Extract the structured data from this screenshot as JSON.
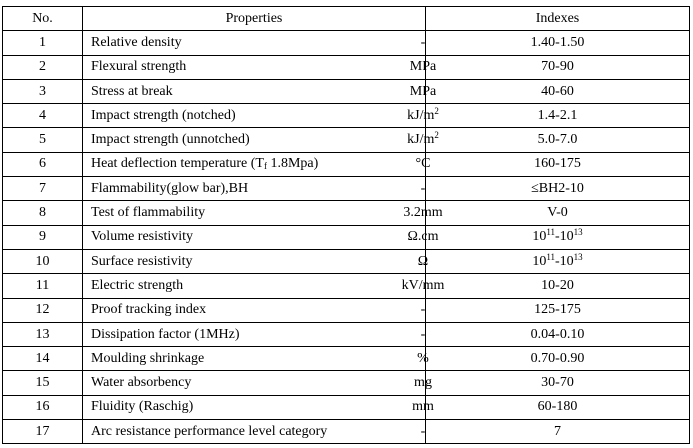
{
  "headers": {
    "no": "No.",
    "properties": "Properties",
    "indexes": "Indexes"
  },
  "rows": [
    {
      "no": "1",
      "property": [
        "Relative density"
      ],
      "unit": [
        "-"
      ],
      "value": [
        "1.40-1.50"
      ]
    },
    {
      "no": "2",
      "property": [
        "Flexural strength"
      ],
      "unit": [
        "MPa"
      ],
      "value": [
        "70-90"
      ]
    },
    {
      "no": "3",
      "property": [
        "Stress at break"
      ],
      "unit": [
        "MPa"
      ],
      "value": [
        "40-60"
      ]
    },
    {
      "no": "4",
      "property": [
        "Impact strength (notched)"
      ],
      "unit": [
        "kJ/m",
        {
          "sup": "2"
        }
      ],
      "value": [
        "1.4-2.1"
      ]
    },
    {
      "no": "5",
      "property": [
        "Impact strength (unnotched)"
      ],
      "unit": [
        "kJ/m",
        {
          "sup": "2"
        }
      ],
      "value": [
        "5.0-7.0"
      ]
    },
    {
      "no": "6",
      "property": [
        "Heat deflection temperature (T",
        {
          "sub": "f"
        },
        " 1.8Mpa)"
      ],
      "unit": [
        "°C"
      ],
      "value": [
        "160-175"
      ]
    },
    {
      "no": "7",
      "property": [
        "Flammability(glow bar),BH"
      ],
      "unit": [
        "-"
      ],
      "value": [
        "≤BH2-10"
      ]
    },
    {
      "no": "8",
      "property": [
        "Test of flammability"
      ],
      "unit": [
        "3.2mm"
      ],
      "value": [
        "V-0"
      ]
    },
    {
      "no": "9",
      "property": [
        "Volume resistivity"
      ],
      "unit": [
        "Ω.cm"
      ],
      "value": [
        "10",
        {
          "sup": "11"
        },
        "-10",
        {
          "sup": "13"
        }
      ]
    },
    {
      "no": "10",
      "property": [
        "Surface resistivity"
      ],
      "unit": [
        "Ω"
      ],
      "value": [
        "10",
        {
          "sup": "11"
        },
        "-10",
        {
          "sup": "13"
        }
      ]
    },
    {
      "no": "11",
      "property": [
        "Electric strength"
      ],
      "unit": [
        "kV/mm"
      ],
      "value": [
        "10-20"
      ]
    },
    {
      "no": "12",
      "property": [
        "Proof tracking index"
      ],
      "unit": [
        "-"
      ],
      "value": [
        "125-175"
      ]
    },
    {
      "no": "13",
      "property": [
        "Dissipation factor (1MHz)"
      ],
      "unit": [
        "-"
      ],
      "value": [
        "0.04-0.10"
      ]
    },
    {
      "no": "14",
      "property": [
        "Moulding shrinkage"
      ],
      "unit": [
        "%"
      ],
      "value": [
        "0.70-0.90"
      ]
    },
    {
      "no": "15",
      "property": [
        "Water absorbency"
      ],
      "unit": [
        "mg"
      ],
      "value": [
        "30-70"
      ]
    },
    {
      "no": "16",
      "property": [
        "Fluidity (Raschig)"
      ],
      "unit": [
        "mm"
      ],
      "value": [
        "60-180"
      ]
    },
    {
      "no": "17",
      "property": [
        "Arc resistance performance level category"
      ],
      "unit": [
        "-"
      ],
      "value": [
        "7"
      ]
    }
  ]
}
